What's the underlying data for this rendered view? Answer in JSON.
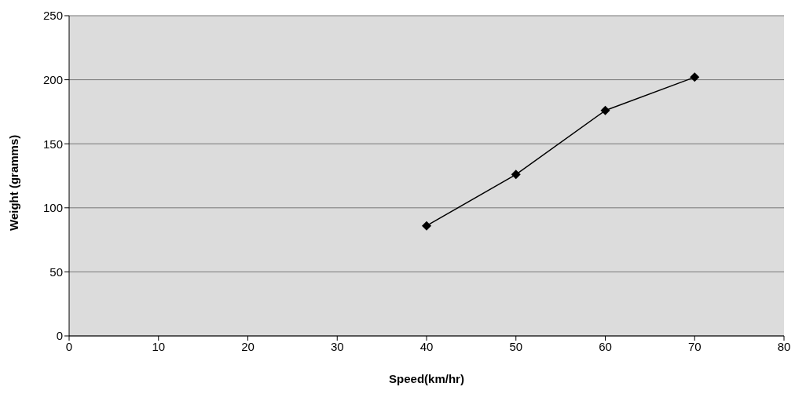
{
  "chart_data": {
    "type": "line",
    "xlabel": "Speed(km/hr)",
    "ylabel": "Weight (gramms)",
    "x": [
      40,
      50,
      60,
      70
    ],
    "series": [
      {
        "color": "#000000",
        "values": [
          86,
          126,
          176,
          202
        ]
      }
    ],
    "xlim": [
      0,
      80
    ],
    "xticks": [
      0,
      10,
      20,
      30,
      40,
      50,
      60,
      70,
      80
    ],
    "ylim": [
      0,
      250
    ],
    "yticks": [
      0,
      50,
      100,
      150,
      200,
      250
    ],
    "grid": "y",
    "marker": "diamond",
    "line_style": "solid"
  }
}
